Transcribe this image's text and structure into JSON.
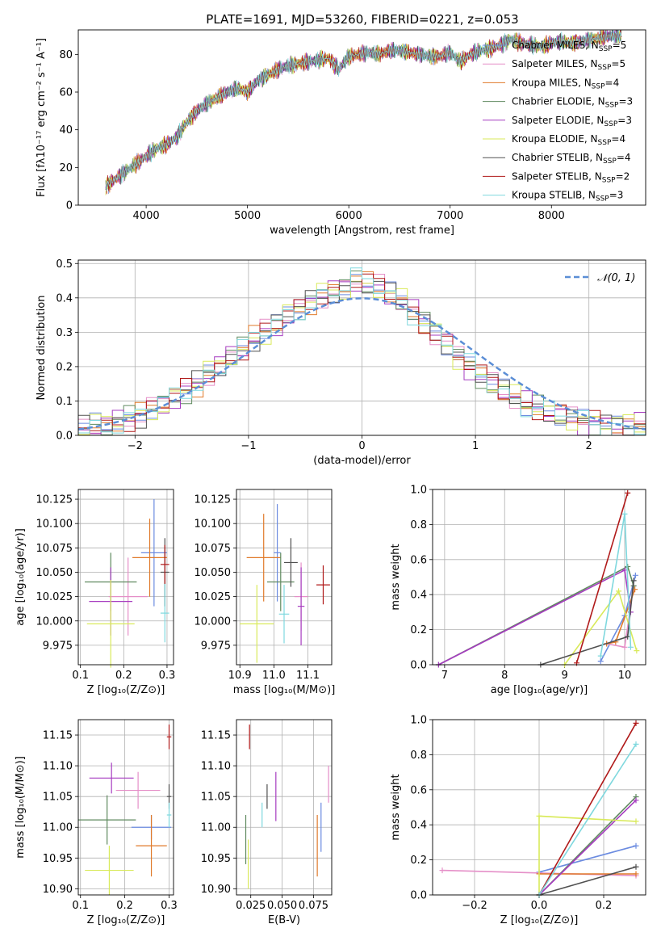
{
  "figure_title": "PLATE=1691, MJD=53260, FIBERID=0221, z=0.053",
  "models": [
    {
      "name": "Chabrier MILES",
      "nssp": "5",
      "color": "#6b8be0"
    },
    {
      "name": "Salpeter MILES",
      "nssp": "5",
      "color": "#e58fc8"
    },
    {
      "name": "Kroupa MILES",
      "nssp": "4",
      "color": "#e07a2a"
    },
    {
      "name": "Chabrier ELODIE",
      "nssp": "3",
      "color": "#5f8a5f"
    },
    {
      "name": "Salpeter ELODIE",
      "nssp": "3",
      "color": "#a63cc0"
    },
    {
      "name": "Kroupa ELODIE",
      "nssp": "4",
      "color": "#d9ea5a"
    },
    {
      "name": "Chabrier STELIB",
      "nssp": "4",
      "color": "#505050"
    },
    {
      "name": "Salpeter STELIB",
      "nssp": "2",
      "color": "#b01a1a"
    },
    {
      "name": "Kroupa STELIB",
      "nssp": "3",
      "color": "#7fd8de"
    }
  ],
  "chart_data": [
    {
      "id": "spectrum",
      "type": "line",
      "xlabel": "wavelength [Angstrom, rest frame]",
      "ylabel": "Flux [fλ10⁻¹⁷ erg cm⁻² s⁻¹ A⁻¹]",
      "xlim": [
        3330,
        8930
      ],
      "ylim": [
        0,
        93
      ],
      "xticks": [
        "4000",
        "5000",
        "6000",
        "7000",
        "8000"
      ],
      "yticks": [
        "0",
        "20",
        "40",
        "60",
        "80"
      ],
      "x": [
        3600,
        3700,
        3800,
        3900,
        4000,
        4100,
        4200,
        4300,
        4400,
        4500,
        4600,
        4700,
        4800,
        4900,
        5000,
        5100,
        5200,
        5300,
        5400,
        5500,
        5600,
        5700,
        5800,
        5900,
        6000,
        6100,
        6200,
        6300,
        6400,
        6500,
        6600,
        6700,
        6800,
        6900,
        7000,
        7100,
        7200,
        7300,
        7400,
        7500,
        7600,
        7700,
        7800,
        7900,
        8000,
        8100,
        8200,
        8300,
        8400,
        8500,
        8600,
        8700
      ],
      "y": [
        10,
        14,
        18,
        22,
        26,
        30,
        32,
        36,
        44,
        50,
        54,
        57,
        60,
        62,
        60,
        66,
        69,
        72,
        74,
        75,
        76,
        77,
        78,
        72,
        79,
        80,
        81,
        80,
        82,
        82,
        81,
        80,
        79,
        79,
        81,
        76,
        80,
        82,
        83,
        85,
        88,
        86,
        85,
        84,
        86,
        87,
        86,
        87,
        88,
        89,
        90,
        90
      ],
      "grid": false,
      "legend_position": "right"
    },
    {
      "id": "residuals",
      "type": "line",
      "xlabel": "(data-model)/error",
      "ylabel": "Normed distribution",
      "xlim": [
        -2.5,
        2.5
      ],
      "ylim": [
        0,
        0.51
      ],
      "xticks": [
        "−2",
        "−1",
        "0",
        "1",
        "2"
      ],
      "yticks": [
        "0.0",
        "0.1",
        "0.2",
        "0.3",
        "0.4",
        "0.5"
      ],
      "bins_start": -2.5,
      "bin_width": 0.1,
      "histogram": [
        0.02,
        0.03,
        0.03,
        0.04,
        0.05,
        0.06,
        0.08,
        0.09,
        0.11,
        0.13,
        0.15,
        0.18,
        0.2,
        0.23,
        0.25,
        0.28,
        0.3,
        0.32,
        0.35,
        0.37,
        0.39,
        0.41,
        0.42,
        0.43,
        0.45,
        0.44,
        0.43,
        0.41,
        0.39,
        0.36,
        0.33,
        0.3,
        0.27,
        0.23,
        0.2,
        0.17,
        0.15,
        0.13,
        0.11,
        0.09,
        0.08,
        0.07,
        0.06,
        0.05,
        0.04,
        0.04,
        0.03,
        0.03,
        0.03,
        0.03
      ],
      "normal_label": "𝒩(0, 1)",
      "normal_color": "#5b8ed6",
      "grid": true,
      "legend_position": "upper right"
    },
    {
      "id": "age-z",
      "type": "scatter",
      "xlabel": "Z [log₁₀(Z/Z⊙)]",
      "ylabel": "age  [log₁₀(age/yr)]",
      "xlim": [
        0.095,
        0.315
      ],
      "ylim": [
        9.955,
        10.135
      ],
      "xticks": [
        "0.1",
        "0.2",
        "0.3"
      ],
      "yticks": [
        "9.975",
        "10.000",
        "10.025",
        "10.050",
        "10.075",
        "10.100",
        "10.125"
      ],
      "grid": true,
      "points": [
        {
          "model": 0,
          "x": 0.27,
          "y": 10.07,
          "xerr": 0.03,
          "yerr": 0.055
        },
        {
          "model": 1,
          "x": 0.21,
          "y": 10.025,
          "xerr": 0.045,
          "yerr": 0.04
        },
        {
          "model": 2,
          "x": 0.26,
          "y": 10.065,
          "xerr": 0.04,
          "yerr": 0.04
        },
        {
          "model": 3,
          "x": 0.17,
          "y": 10.04,
          "xerr": 0.06,
          "yerr": 0.03
        },
        {
          "model": 4,
          "x": 0.17,
          "y": 10.02,
          "xerr": 0.05,
          "yerr": 0.035
        },
        {
          "model": 5,
          "x": 0.17,
          "y": 9.997,
          "xerr": 0.055,
          "yerr": 0.045
        },
        {
          "model": 6,
          "x": 0.295,
          "y": 10.05,
          "xerr": 0.01,
          "yerr": 0.035
        },
        {
          "model": 7,
          "x": 0.295,
          "y": 10.058,
          "xerr": 0.01,
          "yerr": 0.02
        },
        {
          "model": 8,
          "x": 0.295,
          "y": 10.008,
          "xerr": 0.01,
          "yerr": 0.03
        }
      ]
    },
    {
      "id": "age-mass",
      "type": "scatter",
      "xlabel": "mass [log₁₀(M/M⊙)]",
      "ylabel": "",
      "xlim": [
        10.89,
        11.17
      ],
      "ylim": [
        9.955,
        10.135
      ],
      "xticks": [
        "10.9",
        "11.0",
        "11.1"
      ],
      "yticks": [
        "9.975",
        "10.000",
        "10.025",
        "10.050",
        "10.075",
        "10.100",
        "10.125"
      ],
      "grid": true,
      "points": [
        {
          "model": 0,
          "x": 11.01,
          "y": 10.07,
          "xerr": 0.01,
          "yerr": 0.05
        },
        {
          "model": 1,
          "x": 11.08,
          "y": 10.025,
          "xerr": 0.02,
          "yerr": 0.035
        },
        {
          "model": 2,
          "x": 10.97,
          "y": 10.065,
          "xerr": 0.05,
          "yerr": 0.045
        },
        {
          "model": 3,
          "x": 11.02,
          "y": 10.04,
          "xerr": 0.04,
          "yerr": 0.03
        },
        {
          "model": 4,
          "x": 11.08,
          "y": 10.015,
          "xerr": 0.01,
          "yerr": 0.04
        },
        {
          "model": 5,
          "x": 10.95,
          "y": 9.997,
          "xerr": 0.05,
          "yerr": 0.04
        },
        {
          "model": 6,
          "x": 11.05,
          "y": 10.06,
          "xerr": 0.02,
          "yerr": 0.025
        },
        {
          "model": 7,
          "x": 11.145,
          "y": 10.037,
          "xerr": 0.02,
          "yerr": 0.02
        },
        {
          "model": 8,
          "x": 11.03,
          "y": 10.007,
          "xerr": 0.015,
          "yerr": 0.03
        }
      ]
    },
    {
      "id": "weight-age",
      "type": "line",
      "xlabel": "age  [log₁₀(age/yr)]",
      "ylabel": "mass weight",
      "xlim": [
        6.8,
        10.35
      ],
      "ylim": [
        0,
        1
      ],
      "xticks": [
        "7",
        "8",
        "9",
        "10"
      ],
      "yticks": [
        "0.0",
        "0.2",
        "0.4",
        "0.6",
        "0.8",
        "1.0"
      ],
      "grid": true,
      "series": [
        {
          "model": 0,
          "points": [
            [
              9.6,
              0.02
            ],
            [
              10.0,
              0.28
            ],
            [
              10.18,
              0.51
            ]
          ]
        },
        {
          "model": 1,
          "points": [
            [
              9.7,
              0.12
            ],
            [
              10.0,
              0.1
            ],
            [
              10.15,
              0.45
            ]
          ]
        },
        {
          "model": 2,
          "points": [
            [
              9.7,
              0.12
            ],
            [
              9.85,
              0.13
            ],
            [
              10.17,
              0.43
            ]
          ]
        },
        {
          "model": 3,
          "points": [
            [
              6.9,
              0.0
            ],
            [
              10.05,
              0.56
            ],
            [
              10.15,
              0.45
            ]
          ]
        },
        {
          "model": 4,
          "points": [
            [
              6.9,
              0.0
            ],
            [
              10.0,
              0.54
            ],
            [
              10.1,
              0.3
            ]
          ]
        },
        {
          "model": 5,
          "points": [
            [
              9.0,
              0.0
            ],
            [
              9.9,
              0.42
            ],
            [
              10.2,
              0.08
            ]
          ]
        },
        {
          "model": 6,
          "points": [
            [
              8.6,
              0.0
            ],
            [
              10.05,
              0.16
            ],
            [
              10.15,
              0.48
            ]
          ]
        },
        {
          "model": 7,
          "points": [
            [
              9.2,
              0.01
            ],
            [
              10.05,
              0.98
            ]
          ]
        },
        {
          "model": 8,
          "points": [
            [
              9.6,
              0.05
            ],
            [
              10.0,
              0.86
            ],
            [
              10.1,
              0.1
            ]
          ]
        }
      ]
    },
    {
      "id": "mass-z",
      "type": "scatter",
      "xlabel": "Z [log₁₀(Z/Z⊙)]",
      "ylabel": "mass [log₁₀(M/M⊙)]",
      "xlim": [
        0.095,
        0.31
      ],
      "ylim": [
        10.89,
        11.175
      ],
      "xticks": [
        "0.1",
        "0.2",
        "0.3"
      ],
      "yticks": [
        "10.90",
        "10.95",
        "11.00",
        "11.05",
        "11.10",
        "11.15"
      ],
      "grid": true,
      "points": [
        {
          "model": 0,
          "x": 0.26,
          "y": 11.0,
          "xerr": 0.045,
          "yerr": 0.02
        },
        {
          "model": 1,
          "x": 0.23,
          "y": 11.06,
          "xerr": 0.05,
          "yerr": 0.03
        },
        {
          "model": 2,
          "x": 0.26,
          "y": 10.97,
          "xerr": 0.035,
          "yerr": 0.05
        },
        {
          "model": 3,
          "x": 0.16,
          "y": 11.012,
          "xerr": 0.065,
          "yerr": 0.04
        },
        {
          "model": 4,
          "x": 0.17,
          "y": 11.08,
          "xerr": 0.05,
          "yerr": 0.025
        },
        {
          "model": 5,
          "x": 0.165,
          "y": 10.93,
          "xerr": 0.055,
          "yerr": 0.04
        },
        {
          "model": 6,
          "x": 0.3,
          "y": 11.05,
          "xerr": 0.005,
          "yerr": 0.02
        },
        {
          "model": 7,
          "x": 0.3,
          "y": 11.147,
          "xerr": 0.005,
          "yerr": 0.02
        },
        {
          "model": 8,
          "x": 0.3,
          "y": 11.02,
          "xerr": 0.005,
          "yerr": 0.02
        }
      ]
    },
    {
      "id": "mass-ebv",
      "type": "scatter",
      "xlabel": "E(B-V)",
      "ylabel": "",
      "xlim": [
        0.0136,
        0.0895
      ],
      "ylim": [
        10.89,
        11.175
      ],
      "xticks": [
        "0.025",
        "0.050",
        "0.075"
      ],
      "yticks": [
        "10.90",
        "10.95",
        "11.00",
        "11.05",
        "11.10",
        "11.15"
      ],
      "grid": true,
      "points": [
        {
          "model": 0,
          "x": 0.081,
          "y": 11.0,
          "xerr": 0.0,
          "yerr": 0.04
        },
        {
          "model": 1,
          "x": 0.087,
          "y": 11.07,
          "xerr": 0.0,
          "yerr": 0.03
        },
        {
          "model": 2,
          "x": 0.078,
          "y": 10.97,
          "xerr": 0.0,
          "yerr": 0.05
        },
        {
          "model": 3,
          "x": 0.021,
          "y": 10.98,
          "xerr": 0.0,
          "yerr": 0.04
        },
        {
          "model": 4,
          "x": 0.045,
          "y": 11.05,
          "xerr": 0.0,
          "yerr": 0.04
        },
        {
          "model": 5,
          "x": 0.023,
          "y": 10.94,
          "xerr": 0.0,
          "yerr": 0.04
        },
        {
          "model": 6,
          "x": 0.038,
          "y": 11.05,
          "xerr": 0.0,
          "yerr": 0.02
        },
        {
          "model": 7,
          "x": 0.024,
          "y": 11.147,
          "xerr": 0.0,
          "yerr": 0.02
        },
        {
          "model": 8,
          "x": 0.034,
          "y": 11.02,
          "xerr": 0.0,
          "yerr": 0.02
        }
      ]
    },
    {
      "id": "weight-z",
      "type": "line",
      "xlabel": "Z [log₁₀(Z/Z⊙)]",
      "ylabel": "mass weight",
      "xlim": [
        -0.33,
        0.33
      ],
      "ylim": [
        0,
        1
      ],
      "xticks": [
        "−0.2",
        "0.0",
        "0.2"
      ],
      "yticks": [
        "0.0",
        "0.2",
        "0.4",
        "0.6",
        "0.8",
        "1.0"
      ],
      "grid": true,
      "series": [
        {
          "model": 0,
          "points": [
            [
              0.0,
              0.13
            ],
            [
              0.3,
              0.28
            ]
          ]
        },
        {
          "model": 1,
          "points": [
            [
              -0.3,
              0.14
            ],
            [
              0.3,
              0.11
            ]
          ]
        },
        {
          "model": 2,
          "points": [
            [
              0.0,
              0.12
            ],
            [
              0.3,
              0.12
            ]
          ]
        },
        {
          "model": 3,
          "points": [
            [
              0.0,
              0.0
            ],
            [
              0.3,
              0.56
            ]
          ]
        },
        {
          "model": 4,
          "points": [
            [
              0.0,
              0.0
            ],
            [
              0.3,
              0.54
            ]
          ]
        },
        {
          "model": 5,
          "points": [
            [
              0.0,
              0.0
            ],
            [
              0.0,
              0.45
            ],
            [
              0.3,
              0.42
            ]
          ]
        },
        {
          "model": 6,
          "points": [
            [
              0.0,
              0.0
            ],
            [
              0.3,
              0.16
            ]
          ]
        },
        {
          "model": 7,
          "points": [
            [
              0.0,
              0.0
            ],
            [
              0.3,
              0.98
            ]
          ]
        },
        {
          "model": 8,
          "points": [
            [
              0.0,
              0.0
            ],
            [
              0.3,
              0.86
            ]
          ]
        }
      ]
    }
  ]
}
